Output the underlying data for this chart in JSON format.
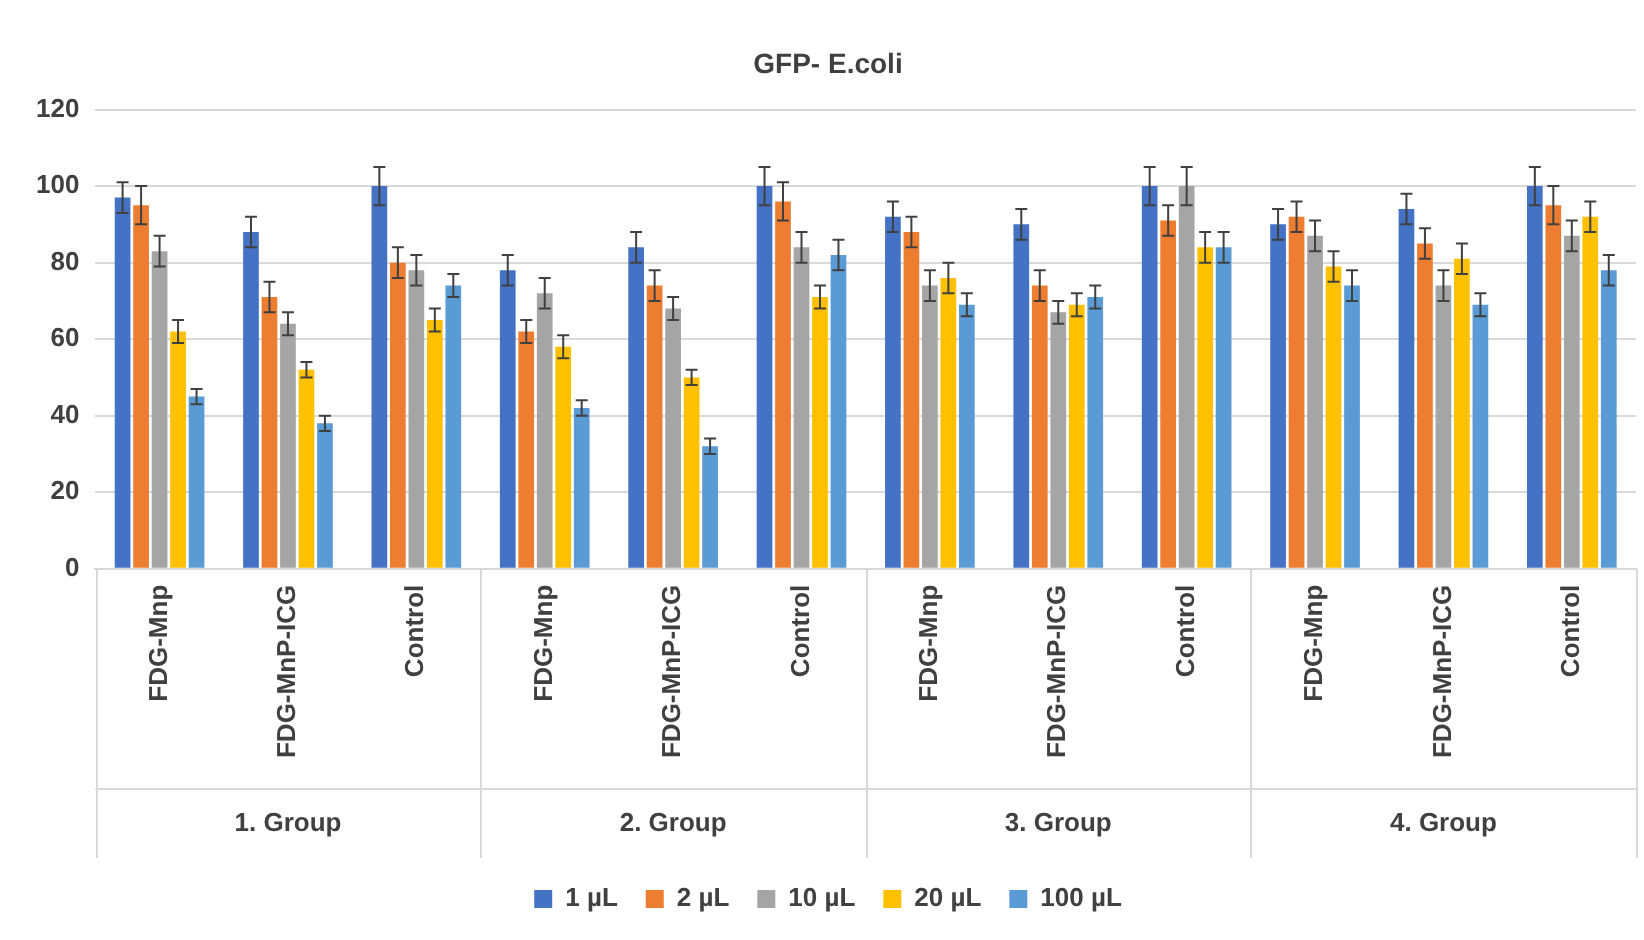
{
  "chart_data": {
    "type": "bar",
    "title": "GFP- E.coli",
    "categories": [
      "FDG-Mnp",
      "FDG-MnP-ICG",
      "Control",
      "FDG-Mnp",
      "FDG-MnP-ICG",
      "Control",
      "FDG-Mnp",
      "FDG-MnP-ICG",
      "Control",
      "FDG-Mnp",
      "FDG-MnP-ICG",
      "Control"
    ],
    "annotations": [
      "1. Group",
      "2. Group",
      "3. Group",
      "4. Group"
    ],
    "series": [
      {
        "name": "1 µL",
        "color": "#4472c4",
        "values": [
          97,
          88,
          100,
          78,
          84,
          100,
          92,
          90,
          100,
          90,
          94,
          100
        ],
        "errors": [
          4,
          4,
          5,
          4,
          4,
          5,
          4,
          4,
          5,
          4,
          4,
          5
        ]
      },
      {
        "name": "2 µL",
        "color": "#ed7d31",
        "values": [
          95,
          71,
          80,
          62,
          74,
          96,
          88,
          74,
          91,
          92,
          85,
          95
        ],
        "errors": [
          5,
          4,
          4,
          3,
          4,
          5,
          4,
          4,
          4,
          4,
          4,
          5
        ]
      },
      {
        "name": "10 µL",
        "color": "#a5a5a5",
        "values": [
          83,
          64,
          78,
          72,
          68,
          84,
          74,
          67,
          100,
          87,
          74,
          87
        ],
        "errors": [
          4,
          3,
          4,
          4,
          3,
          4,
          4,
          3,
          5,
          4,
          4,
          4
        ]
      },
      {
        "name": "20 µL",
        "color": "#ffc000",
        "values": [
          62,
          52,
          65,
          58,
          50,
          71,
          76,
          69,
          84,
          79,
          81,
          92
        ],
        "errors": [
          3,
          2,
          3,
          3,
          2,
          3,
          4,
          3,
          4,
          4,
          4,
          4
        ]
      },
      {
        "name": "100 µL",
        "color": "#5b9bd5",
        "values": [
          45,
          38,
          74,
          42,
          32,
          82,
          69,
          71,
          84,
          74,
          69,
          78
        ],
        "errors": [
          2,
          2,
          3,
          2,
          2,
          4,
          3,
          3,
          4,
          4,
          3,
          4
        ]
      }
    ],
    "ylim": [
      0,
      120
    ],
    "yticks": [
      0,
      20,
      40,
      60,
      80,
      100,
      120
    ],
    "grid": "y",
    "legend": "bottom"
  }
}
